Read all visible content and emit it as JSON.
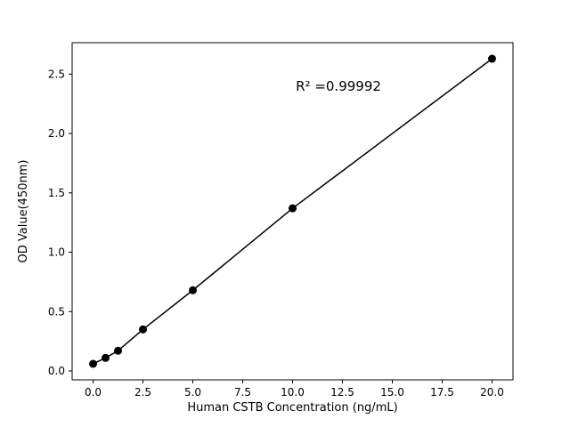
{
  "chart_data": {
    "type": "scatter",
    "title": "",
    "xlabel": "Human CSTB Concentration (ng/mL)",
    "ylabel": "OD Value(450nm)",
    "x": [
      0,
      0.625,
      1.25,
      2.5,
      5,
      10,
      20
    ],
    "y": [
      0.06,
      0.11,
      0.17,
      0.35,
      0.68,
      1.37,
      2.63
    ],
    "line_through_points": true,
    "annotation": {
      "text": "R² =0.99992",
      "x": 12.3,
      "y": 2.36
    },
    "xlim": [
      -1.05,
      21.05
    ],
    "ylim": [
      -0.075,
      2.765
    ],
    "xticks": [
      0.0,
      2.5,
      5.0,
      7.5,
      10.0,
      12.5,
      15.0,
      17.5,
      20.0
    ],
    "xtick_labels": [
      "0.0",
      "2.5",
      "5.0",
      "7.5",
      "10.0",
      "12.5",
      "15.0",
      "17.5",
      "20.0"
    ],
    "yticks": [
      0.0,
      0.5,
      1.0,
      1.5,
      2.0,
      2.5
    ],
    "ytick_labels": [
      "0.0",
      "0.5",
      "1.0",
      "1.5",
      "2.0",
      "2.5"
    ],
    "legend": "none",
    "grid": false,
    "marker_color": "#000000",
    "line_color": "#000000",
    "background_color": "#ffffff",
    "marker_radius": 4.5
  }
}
